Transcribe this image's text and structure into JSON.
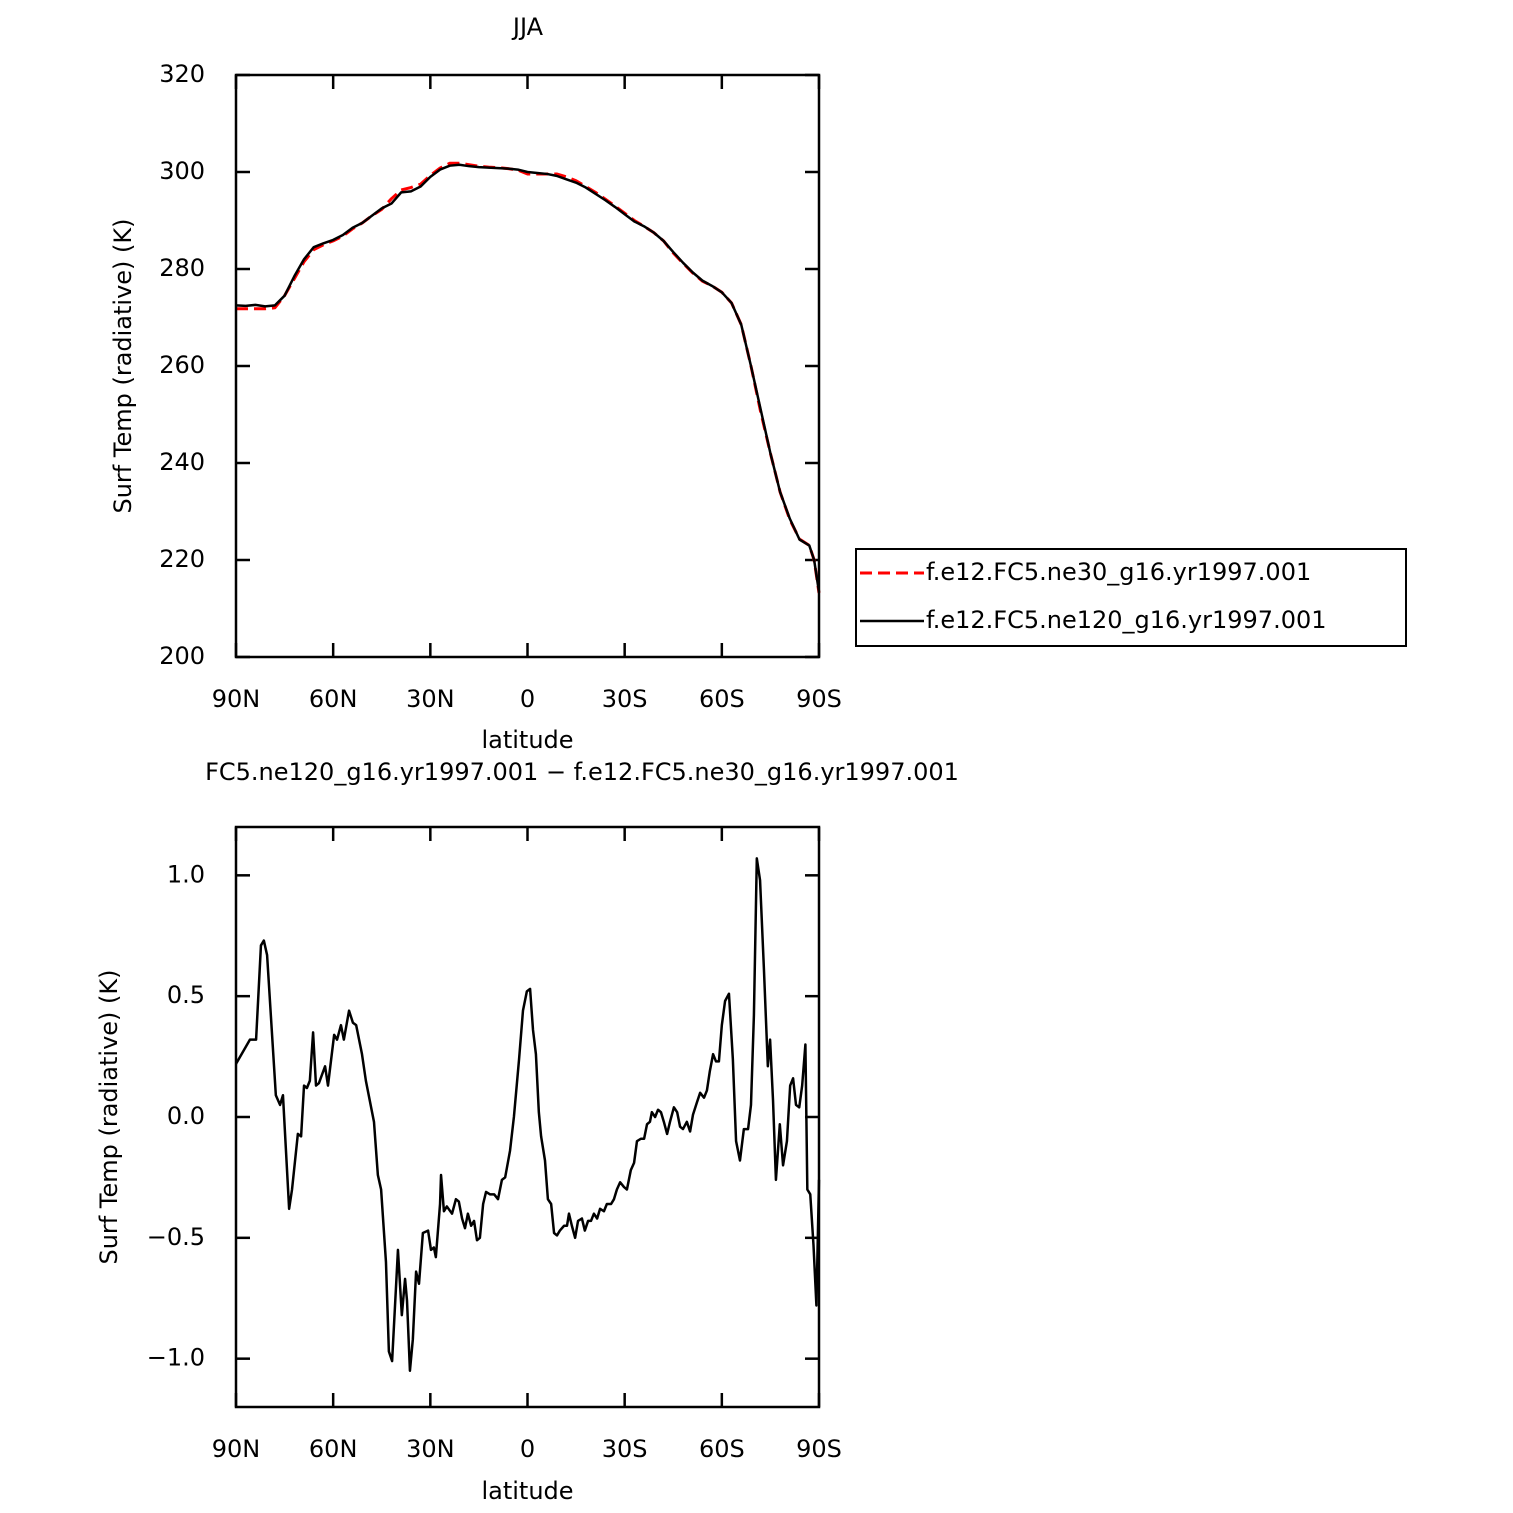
{
  "chart_data": [
    {
      "type": "line",
      "title": "JJA",
      "xlabel": "latitude",
      "ylabel": "Surf Temp (radiative) (K)",
      "xlim": [
        90,
        -90
      ],
      "ylim": [
        200,
        320
      ],
      "xticks": [
        {
          "value": 90,
          "label": "90N"
        },
        {
          "value": 60,
          "label": "60N"
        },
        {
          "value": 30,
          "label": "30N"
        },
        0,
        {
          "value": -30,
          "label": "30S"
        },
        {
          "value": -60,
          "label": "60S"
        },
        {
          "value": -90,
          "label": "90S"
        }
      ],
      "yticks": [
        200,
        220,
        240,
        260,
        280,
        300,
        320
      ],
      "legend": "right",
      "x": [
        90,
        87,
        84,
        81,
        78,
        75,
        72,
        69,
        66,
        63,
        60,
        57,
        54,
        51,
        48,
        45,
        42,
        39,
        36,
        33,
        30,
        27,
        24,
        21,
        18,
        15,
        12,
        9,
        6,
        3,
        0,
        -3,
        -6,
        -9,
        -12,
        -15,
        -18,
        -21,
        -24,
        -27,
        -30,
        -33,
        -36,
        -39,
        -42,
        -45,
        -48,
        -51,
        -54,
        -57,
        -60,
        -63,
        -66,
        -69,
        -72,
        -75,
        -78,
        -81,
        -84,
        -87,
        -88.5,
        -90
      ],
      "series": [
        {
          "name": "f.e12.FC5.ne30_g16.yr1997.001",
          "color": "#ff0000",
          "dashed": true,
          "values": [
            271.8,
            271.8,
            271.8,
            271.8,
            272,
            274.5,
            278,
            281.5,
            284,
            285,
            285.8,
            286.8,
            288.3,
            289.5,
            291,
            292.3,
            294.5,
            296.3,
            296.8,
            297.5,
            299.3,
            300.8,
            301.8,
            301.8,
            301.5,
            301.2,
            301,
            300.9,
            300.7,
            300.4,
            299.6,
            299.6,
            299.6,
            299.6,
            299,
            298.2,
            297,
            295.8,
            294.4,
            293,
            291.5,
            290,
            288.8,
            287.5,
            285.8,
            283.3,
            281.2,
            279.2,
            277.5,
            276.5,
            275.2,
            273,
            268.5,
            260,
            250.5,
            242,
            234,
            228.3,
            224.3,
            223,
            220,
            213.2
          ]
        },
        {
          "name": "f.e12.FC5.ne120_g16.yr1997.001",
          "color": "#000000",
          "dashed": false,
          "values": [
            272.5,
            272.4,
            272.6,
            272.3,
            272.5,
            274.5,
            278.5,
            282,
            284.5,
            285.3,
            286,
            287,
            288.5,
            289.5,
            291,
            292.5,
            293.5,
            295.8,
            296,
            297,
            299,
            300.5,
            301.3,
            301.5,
            301.2,
            301,
            300.9,
            300.8,
            300.7,
            300.5,
            300,
            299.8,
            299.6,
            299.2,
            298.5,
            297.8,
            296.8,
            295.5,
            294.2,
            292.8,
            291.3,
            289.8,
            288.8,
            287.5,
            285.8,
            283.5,
            281.3,
            279.3,
            277.6,
            276.5,
            275.2,
            273,
            268.5,
            260,
            251,
            242,
            234,
            228.5,
            224.2,
            223,
            220,
            213.4
          ]
        }
      ]
    },
    {
      "type": "line",
      "title": "FC5.ne120_g16.yr1997.001 − f.e12.FC5.ne30_g16.yr1997.001",
      "xlabel": "latitude",
      "ylabel": "Surf Temp (radiative) (K)",
      "xlim": [
        90,
        -90
      ],
      "ylim": [
        -1.2,
        1.2
      ],
      "xticks": [
        {
          "value": 90,
          "label": "90N"
        },
        {
          "value": 60,
          "label": "60N"
        },
        {
          "value": 30,
          "label": "30N"
        },
        0,
        {
          "value": -30,
          "label": "30S"
        },
        {
          "value": -60,
          "label": "60S"
        },
        {
          "value": -90,
          "label": "90S"
        }
      ],
      "yticks": [
        {
          "value": -1,
          "label": "−1.0"
        },
        {
          "value": -0.5,
          "label": "−0.5"
        },
        {
          "value": 0,
          "label": "0.0"
        },
        0.5,
        {
          "value": 1,
          "label": "1.0"
        }
      ],
      "color": "#000000",
      "x": [
        90,
        85.7,
        83.8,
        82.3,
        81.4,
        80.4,
        77.7,
        76.4,
        75.5,
        73.6,
        72.7,
        70.9,
        69.9,
        69,
        68.1,
        67.2,
        66.2,
        65.3,
        64.4,
        62.5,
        61.6,
        59.7,
        58.8,
        57.6,
        56.7,
        55.1,
        53.9,
        52.9,
        51.1,
        49.9,
        47.4,
        46.2,
        45.2,
        43.7,
        42.8,
        41.8,
        40,
        38.8,
        37.8,
        37.2,
        36.3,
        35.4,
        34.4,
        33.5,
        32.3,
        30.7,
        29.8,
        28.9,
        28.3,
        27,
        26.7,
        25.8,
        24.9,
        23.3,
        22.1,
        21.2,
        20.2,
        19.3,
        18.4,
        17.4,
        16.5,
        15.6,
        14.7,
        13.7,
        12.8,
        11.6,
        10.3,
        9.1,
        7.9,
        6.9,
        5.4,
        4.2,
        2.6,
        1.4,
        0.2,
        -0.8,
        -1.7,
        -2.6,
        -3.5,
        -4.2,
        -5.4,
        -6.3,
        -7.3,
        -8.2,
        -9.1,
        -10,
        -11.3,
        -12.2,
        -12.8,
        -13.7,
        -14.7,
        -15.6,
        -16.8,
        -17.7,
        -18.7,
        -19.6,
        -20.5,
        -21.5,
        -22.4,
        -23.6,
        -24.5,
        -25.8,
        -26.7,
        -27.6,
        -28.6,
        -29.8,
        -30.7,
        -31.9,
        -32.9,
        -33.8,
        -35,
        -36,
        -36.9,
        -37.8,
        -38.4,
        -39.4,
        -40.3,
        -41.2,
        -42.1,
        -43.1,
        -44,
        -45.2,
        -46.2,
        -47.1,
        -48,
        -49.2,
        -50.2,
        -51.1,
        -52.3,
        -53.3,
        -54.5,
        -55.4,
        -56.3,
        -57.3,
        -58.2,
        -59.1,
        -60,
        -61,
        -62.2,
        -63.4,
        -64.4,
        -65.6,
        -66.8,
        -68.1,
        -69,
        -69.9,
        -70.8,
        -71.8,
        -73,
        -74.2,
        -74.9,
        -75.8,
        -76.7,
        -77.9,
        -78.9,
        -80.1,
        -81.1,
        -82,
        -82.9,
        -83.9,
        -84.8,
        -85.8,
        -86.4,
        -87.3,
        -88.3,
        -89.2,
        -90
      ],
      "values": [
        0.22,
        0.32,
        0.32,
        0.71,
        0.73,
        0.67,
        0.09,
        0.05,
        0.09,
        -0.38,
        -0.3,
        -0.07,
        -0.08,
        0.13,
        0.12,
        0.15,
        0.35,
        0.13,
        0.14,
        0.21,
        0.13,
        0.34,
        0.32,
        0.38,
        0.32,
        0.44,
        0.39,
        0.38,
        0.26,
        0.15,
        -0.02,
        -0.24,
        -0.3,
        -0.6,
        -0.97,
        -1.01,
        -0.55,
        -0.82,
        -0.67,
        -0.76,
        -1.05,
        -0.92,
        -0.64,
        -0.69,
        -0.48,
        -0.47,
        -0.55,
        -0.54,
        -0.58,
        -0.36,
        -0.24,
        -0.39,
        -0.37,
        -0.4,
        -0.34,
        -0.35,
        -0.42,
        -0.46,
        -0.4,
        -0.45,
        -0.43,
        -0.51,
        -0.5,
        -0.36,
        -0.31,
        -0.32,
        -0.32,
        -0.34,
        -0.26,
        -0.25,
        -0.14,
        0,
        0.24,
        0.44,
        0.52,
        0.53,
        0.36,
        0.26,
        0.02,
        -0.08,
        -0.18,
        -0.34,
        -0.36,
        -0.48,
        -0.49,
        -0.47,
        -0.45,
        -0.45,
        -0.4,
        -0.45,
        -0.5,
        -0.43,
        -0.42,
        -0.47,
        -0.43,
        -0.43,
        -0.4,
        -0.42,
        -0.38,
        -0.39,
        -0.36,
        -0.36,
        -0.34,
        -0.3,
        -0.27,
        -0.29,
        -0.3,
        -0.22,
        -0.19,
        -0.1,
        -0.09,
        -0.09,
        -0.03,
        -0.02,
        0.02,
        0,
        0.03,
        0.02,
        -0.02,
        -0.07,
        -0.02,
        0.04,
        0.02,
        -0.04,
        -0.05,
        -0.02,
        -0.06,
        0.01,
        0.06,
        0.1,
        0.08,
        0.11,
        0.19,
        0.26,
        0.23,
        0.23,
        0.38,
        0.48,
        0.51,
        0.24,
        -0.1,
        -0.18,
        -0.05,
        -0.05,
        0.05,
        0.42,
        1.07,
        0.98,
        0.61,
        0.21,
        0.32,
        0.07,
        -0.26,
        -0.03,
        -0.2,
        -0.1,
        0.13,
        0.16,
        0.05,
        0.04,
        0.13,
        0.3,
        -0.3,
        -0.32,
        -0.53,
        -0.78,
        -0.26
      ]
    }
  ]
}
